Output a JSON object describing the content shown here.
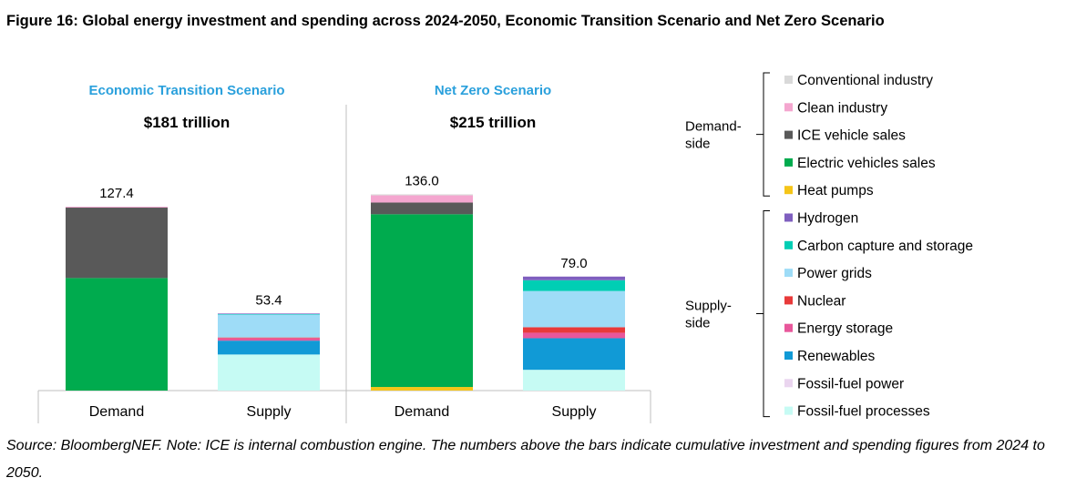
{
  "title": "Figure 16: Global energy investment and spending across 2024-2050, Economic Transition Scenario and Net Zero Scenario",
  "source": "Source: BloombergNEF. Note: ICE is internal combustion engine. The numbers above the bars indicate cumulative investment and spending figures from 2024 to 2050.",
  "chart_data": {
    "type": "bar",
    "stacked": true,
    "unit": "$ trillion",
    "panels": [
      {
        "title": "Economic Transition Scenario",
        "subtitle": "$181 trillion",
        "categories": [
          "Demand",
          "Supply"
        ],
        "totals": [
          "127.4",
          "53.4"
        ],
        "values": {
          "Conventional industry": [
            0,
            0
          ],
          "Clean industry": [
            0.6,
            0
          ],
          "ICE vehicle sales": [
            48.8,
            0
          ],
          "Electric vehicles sales": [
            78.0,
            0
          ],
          "Heat pumps": [
            0,
            0
          ],
          "Hydrogen": [
            0,
            0.4
          ],
          "Carbon capture and storage": [
            0,
            0.3
          ],
          "Power grids": [
            0,
            15.9
          ],
          "Nuclear": [
            0,
            0.4
          ],
          "Energy storage": [
            0,
            1.8
          ],
          "Renewables": [
            0,
            9.6
          ],
          "Fossil-fuel power": [
            0,
            0
          ],
          "Fossil-fuel processes": [
            0,
            25.0
          ]
        }
      },
      {
        "title": "Net Zero Scenario",
        "subtitle": "$215 trillion",
        "categories": [
          "Demand",
          "Supply"
        ],
        "totals": [
          "136.0",
          "79.0"
        ],
        "values": {
          "Conventional industry": [
            0.7,
            0
          ],
          "Clean industry": [
            5.0,
            0
          ],
          "ICE vehicle sales": [
            8.1,
            0
          ],
          "Electric vehicles sales": [
            119.7,
            0
          ],
          "Heat pumps": [
            2.5,
            0
          ],
          "Hydrogen": [
            0,
            2.5
          ],
          "Carbon capture and storage": [
            0,
            7.5
          ],
          "Power grids": [
            0,
            25.1
          ],
          "Nuclear": [
            0,
            3.8
          ],
          "Energy storage": [
            0,
            3.8
          ],
          "Renewables": [
            0,
            21.9
          ],
          "Fossil-fuel power": [
            0,
            0
          ],
          "Fossil-fuel processes": [
            0,
            14.4
          ]
        }
      }
    ],
    "legend": {
      "placement": "right",
      "groups": [
        {
          "label": "Demand-\nside",
          "items": [
            "Conventional industry",
            "Clean industry",
            "ICE vehicle sales",
            "Electric vehicles sales",
            "Heat pumps"
          ]
        },
        {
          "label": "Supply-\nside",
          "items": [
            "Hydrogen",
            "Carbon capture and storage",
            "Power grids",
            "Nuclear",
            "Energy storage",
            "Renewables",
            "Fossil-fuel power",
            "Fossil-fuel processes"
          ]
        }
      ]
    },
    "colors": {
      "Conventional industry": "#d9d9d9",
      "Clean industry": "#f4a6cf",
      "ICE vehicle sales": "#595959",
      "Electric vehicles sales": "#00ab4e",
      "Heat pumps": "#f5c518",
      "Hydrogen": "#7f5fbf",
      "Carbon capture and storage": "#00ceb4",
      "Power grids": "#9edcf7",
      "Nuclear": "#e83a3a",
      "Energy storage": "#e8579b",
      "Renewables": "#119ad6",
      "Fossil-fuel power": "#ead5ef",
      "Fossil-fuel processes": "#c6fbf4"
    },
    "panel_title_color": "#2aa0dc"
  }
}
